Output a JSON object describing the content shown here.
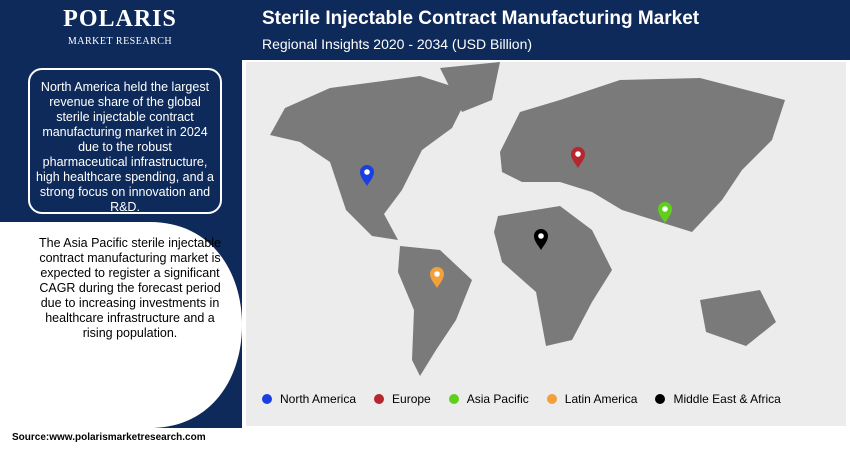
{
  "logo": {
    "name": "POLARIS",
    "tagline": "MARKET RESEARCH"
  },
  "header": {
    "title": "Sterile Injectable Contract Manufacturing Market",
    "subtitle": "Regional Insights 2020 - 2034 (USD Billion)"
  },
  "callouts": [
    "North America held the largest revenue share of the global sterile injectable contract manufacturing market in 2024 due to the robust pharmaceutical infrastructure, high healthcare spending, and a strong focus on innovation and R&D.",
    "The Asia Pacific sterile injectable contract manufacturing market is expected to register a significant CAGR during the forecast period due to increasing investments in healthcare infrastructure and a rising population."
  ],
  "legend": [
    {
      "name": "North America",
      "color": "#1a3fe0"
    },
    {
      "name": "Europe",
      "color": "#b5262e"
    },
    {
      "name": "Asia Pacific",
      "color": "#5fcf1c"
    },
    {
      "name": "Latin America",
      "color": "#f2a03a"
    },
    {
      "name": "Middle East & Africa",
      "color": "#000000"
    }
  ],
  "source": "Source:www.polarismarketresearch.com"
}
